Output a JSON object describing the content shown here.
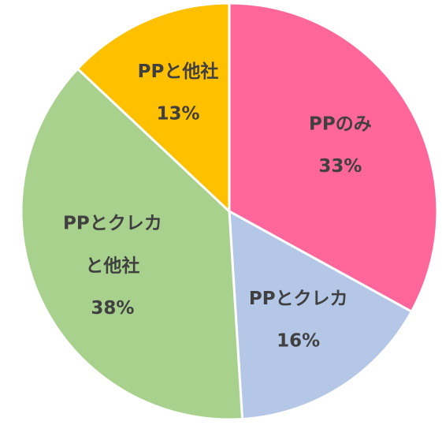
{
  "chart_data": {
    "type": "pie",
    "categories": [
      "PPのみ",
      "PPとクレカ",
      "PPとクレカ\nと他社",
      "PPと他社"
    ],
    "values": [
      33,
      16,
      38,
      13
    ],
    "value_labels": [
      "33%",
      "16%",
      "38%",
      "13%"
    ],
    "colors": [
      "#ff6699",
      "#b4c7e7",
      "#a9d18e",
      "#ffc000"
    ]
  }
}
